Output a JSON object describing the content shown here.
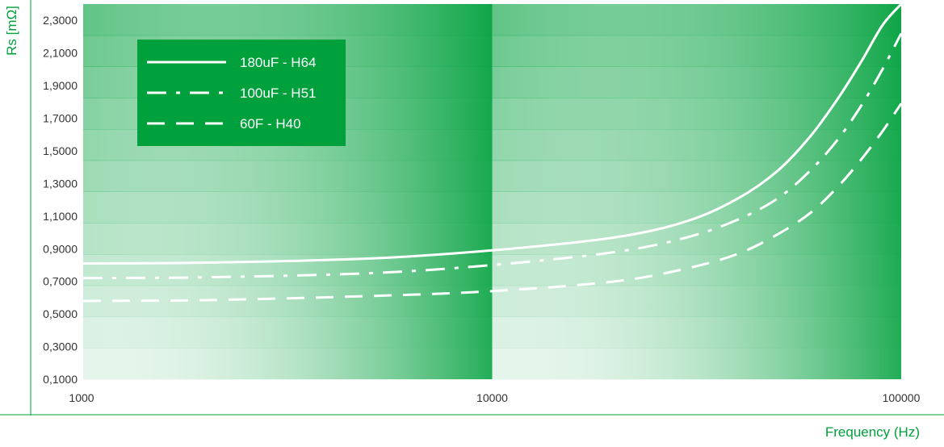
{
  "chart_data": {
    "type": "line",
    "title": "",
    "xlabel": "Frequency (Hz)",
    "ylabel": "Rs [mΩ]",
    "x_scale": "log",
    "xlim": [
      1000,
      100000
    ],
    "ylim": [
      0.1,
      2.4
    ],
    "x_ticks": [
      "1000",
      "10000",
      "100000"
    ],
    "y_ticks": [
      "0,1000",
      "0,3000",
      "0,5000",
      "0,7000",
      "0,9000",
      "1,1000",
      "1,3000",
      "1,5000",
      "1,7000",
      "1,9000",
      "2,1000",
      "2,3000"
    ],
    "legend_position": "top-left",
    "grid": false,
    "series": [
      {
        "name": "180uF - H64",
        "line_style": "solid",
        "x": [
          1000,
          2000,
          5000,
          10000,
          20000,
          30000,
          40000,
          50000,
          60000,
          70000,
          80000,
          90000,
          100000
        ],
        "y": [
          0.81,
          0.815,
          0.84,
          0.89,
          0.97,
          1.07,
          1.21,
          1.38,
          1.59,
          1.82,
          2.05,
          2.27,
          2.4
        ]
      },
      {
        "name": "100uF - H51",
        "line_style": "dash-dot",
        "x": [
          1000,
          2000,
          5000,
          10000,
          20000,
          30000,
          40000,
          50000,
          60000,
          70000,
          80000,
          90000,
          100000
        ],
        "y": [
          0.72,
          0.725,
          0.75,
          0.8,
          0.88,
          0.97,
          1.08,
          1.21,
          1.38,
          1.57,
          1.78,
          2.0,
          2.22
        ]
      },
      {
        "name": "60F - H40",
        "line_style": "dashed",
        "x": [
          1000,
          2000,
          5000,
          10000,
          20000,
          30000,
          40000,
          50000,
          60000,
          70000,
          80000,
          90000,
          100000
        ],
        "y": [
          0.58,
          0.585,
          0.61,
          0.64,
          0.7,
          0.78,
          0.87,
          0.99,
          1.12,
          1.28,
          1.45,
          1.62,
          1.79
        ]
      }
    ],
    "colors": {
      "background_dark": "#00a03c",
      "background_light": "#e6f2df",
      "axis": "#00a03c",
      "legend_box": "#00a03c",
      "line": "#ffffff",
      "tick_text": "#333333"
    }
  }
}
